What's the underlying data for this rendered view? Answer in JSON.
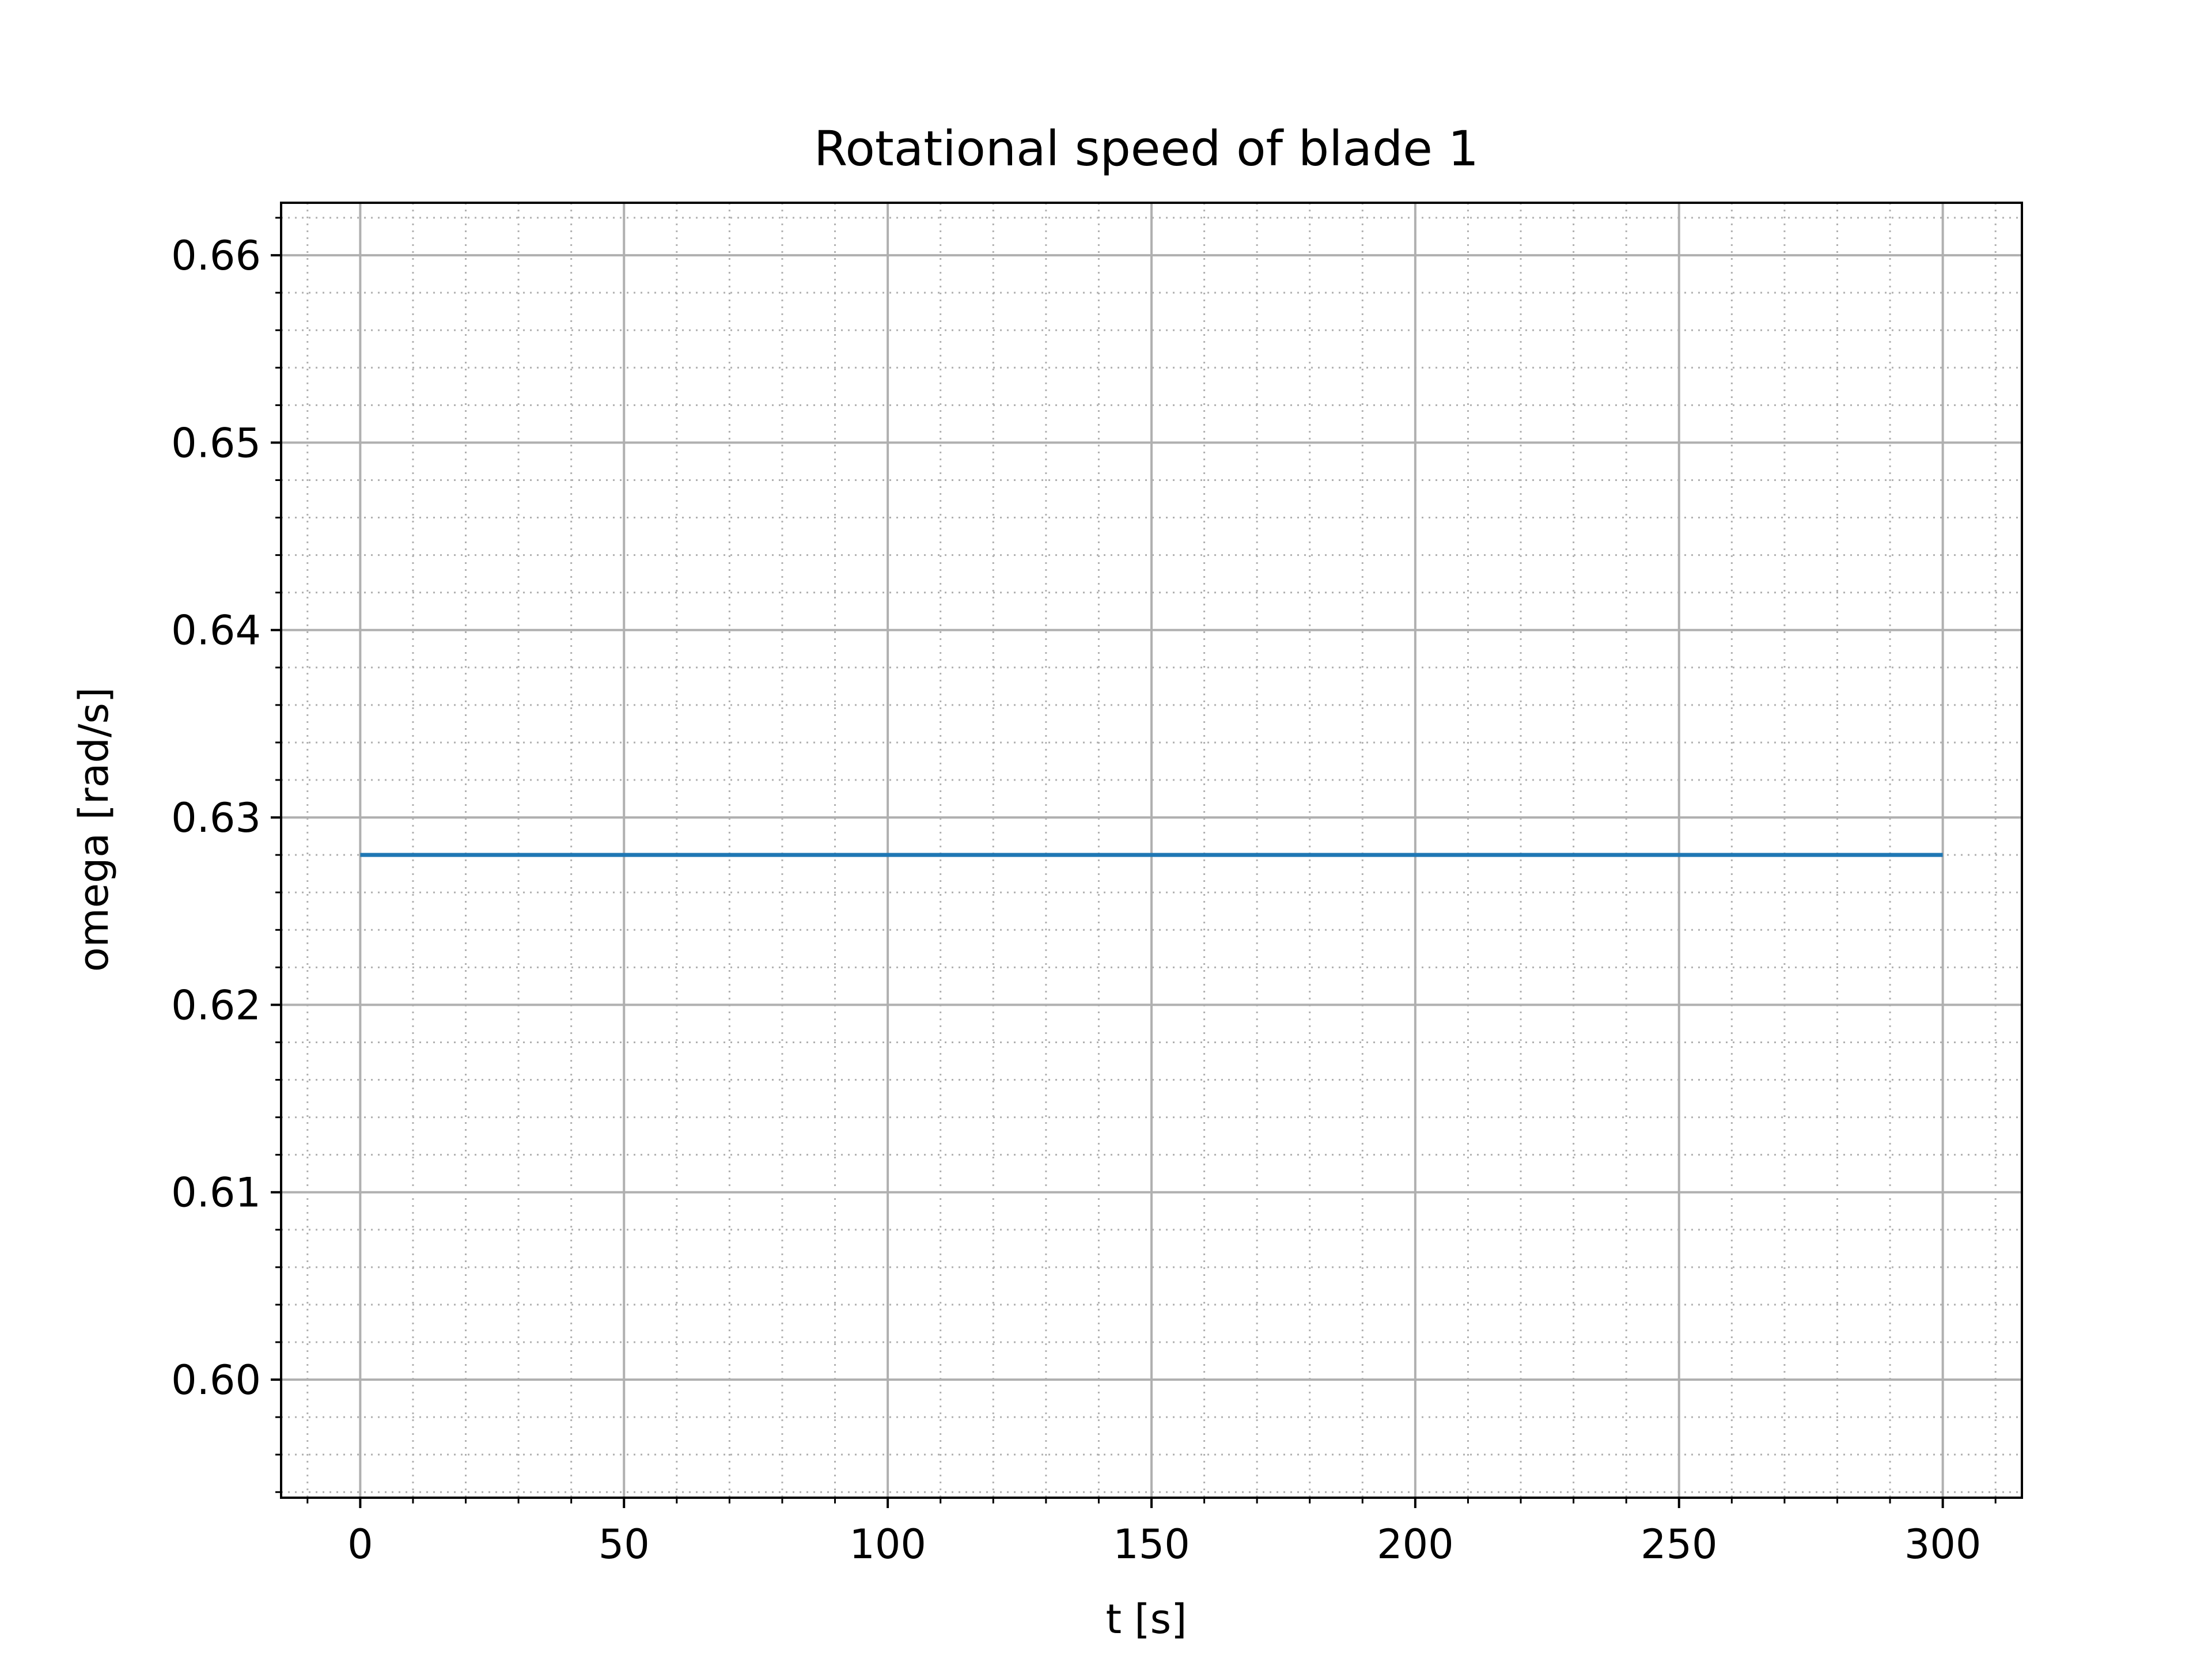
{
  "chart_data": {
    "type": "line",
    "title": "Rotational speed of blade 1",
    "xlabel": "t [s]",
    "ylabel": "omega [rad/s]",
    "xlim": [
      -15,
      315
    ],
    "ylim": [
      0.5937,
      0.6628
    ],
    "x_ticks": [
      0,
      50,
      100,
      150,
      200,
      250,
      300
    ],
    "x_tick_labels": [
      "0",
      "50",
      "100",
      "150",
      "200",
      "250",
      "300"
    ],
    "x_minor_step": 10,
    "y_ticks": [
      0.6,
      0.61,
      0.62,
      0.63,
      0.64,
      0.65,
      0.66
    ],
    "y_tick_labels": [
      "0.60",
      "0.61",
      "0.62",
      "0.63",
      "0.64",
      "0.65",
      "0.66"
    ],
    "y_minor_step": 0.002,
    "grid": {
      "major": true,
      "minor": true,
      "minor_style": "dotted"
    },
    "series": [
      {
        "color": "#1f77b4",
        "x": [
          0,
          300
        ],
        "y": [
          0.628,
          0.628
        ]
      }
    ]
  }
}
